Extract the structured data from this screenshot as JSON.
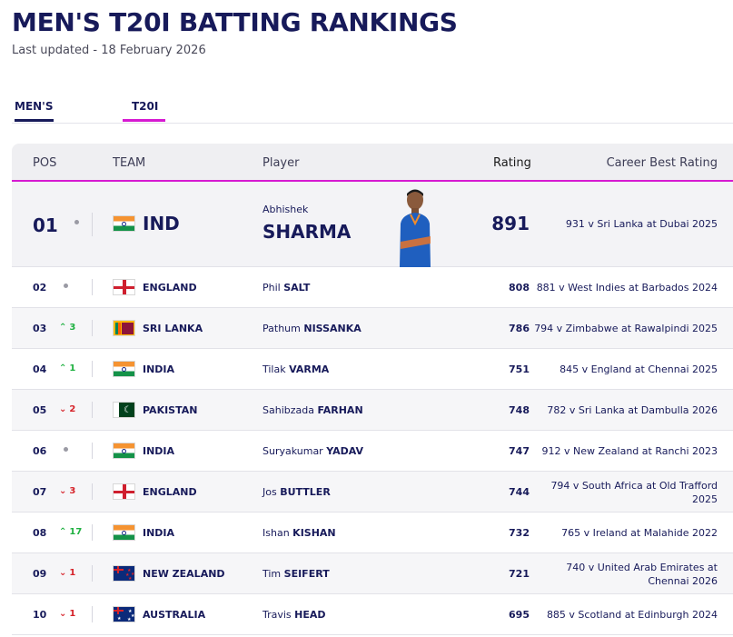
{
  "page": {
    "title": "MEN'S T20I BATTING RANKINGS",
    "updated": "Last updated - 18 February 2026"
  },
  "tabs": [
    {
      "label": "MEN'S",
      "active": true
    },
    {
      "label": "T20I",
      "active": true
    }
  ],
  "table": {
    "headers": {
      "pos": "POS",
      "team": "TEAM",
      "player": "Player",
      "rating": "Rating",
      "best": "Career Best Rating"
    },
    "rows": [
      {
        "pos": "01",
        "move_dir": "none",
        "move": "",
        "flag": "ind",
        "team": "IND",
        "first": "Abhishek",
        "last": "SHARMA",
        "rating": "891",
        "best": "931 v Sri Lanka at Dubai 2025"
      },
      {
        "pos": "02",
        "move_dir": "none",
        "move": "",
        "flag": "eng",
        "team": "ENGLAND",
        "first": "Phil",
        "last": "SALT",
        "rating": "808",
        "best": "881 v West Indies at Barbados 2024"
      },
      {
        "pos": "03",
        "move_dir": "up",
        "move": "3",
        "flag": "sl",
        "team": "SRI LANKA",
        "first": "Pathum",
        "last": "NISSANKA",
        "rating": "786",
        "best": "794 v Zimbabwe at Rawalpindi 2025"
      },
      {
        "pos": "04",
        "move_dir": "up",
        "move": "1",
        "flag": "ind",
        "team": "INDIA",
        "first": "Tilak",
        "last": "VARMA",
        "rating": "751",
        "best": "845 v England at Chennai 2025"
      },
      {
        "pos": "05",
        "move_dir": "down",
        "move": "2",
        "flag": "pak",
        "team": "PAKISTAN",
        "first": "Sahibzada",
        "last": "FARHAN",
        "rating": "748",
        "best": "782 v Sri Lanka at Dambulla 2026"
      },
      {
        "pos": "06",
        "move_dir": "none",
        "move": "",
        "flag": "ind",
        "team": "INDIA",
        "first": "Suryakumar",
        "last": "YADAV",
        "rating": "747",
        "best": "912 v New Zealand at Ranchi 2023"
      },
      {
        "pos": "07",
        "move_dir": "down",
        "move": "3",
        "flag": "eng",
        "team": "ENGLAND",
        "first": "Jos",
        "last": "BUTTLER",
        "rating": "744",
        "best": "794 v South Africa at Old Trafford 2025"
      },
      {
        "pos": "08",
        "move_dir": "up",
        "move": "17",
        "flag": "ind",
        "team": "INDIA",
        "first": "Ishan",
        "last": "KISHAN",
        "rating": "732",
        "best": "765 v Ireland at Malahide 2022"
      },
      {
        "pos": "09",
        "move_dir": "down",
        "move": "1",
        "flag": "nz",
        "team": "NEW ZEALAND",
        "first": "Tim",
        "last": "SEIFERT",
        "rating": "721",
        "best": "740 v United Arab Emirates at Chennai 2026"
      },
      {
        "pos": "10",
        "move_dir": "down",
        "move": "1",
        "flag": "aus",
        "team": "AUSTRALIA",
        "first": "Travis",
        "last": "HEAD",
        "rating": "695",
        "best": "885 v Scotland at Edinburgh 2024"
      }
    ]
  },
  "icons": {
    "up": "chevron-up-icon",
    "down": "chevron-down-icon",
    "none": "no-change-dot-icon"
  },
  "colors": {
    "navy": "#171a5a",
    "accent": "#d61ad1",
    "up": "#1fb141",
    "down": "#d6232a"
  }
}
